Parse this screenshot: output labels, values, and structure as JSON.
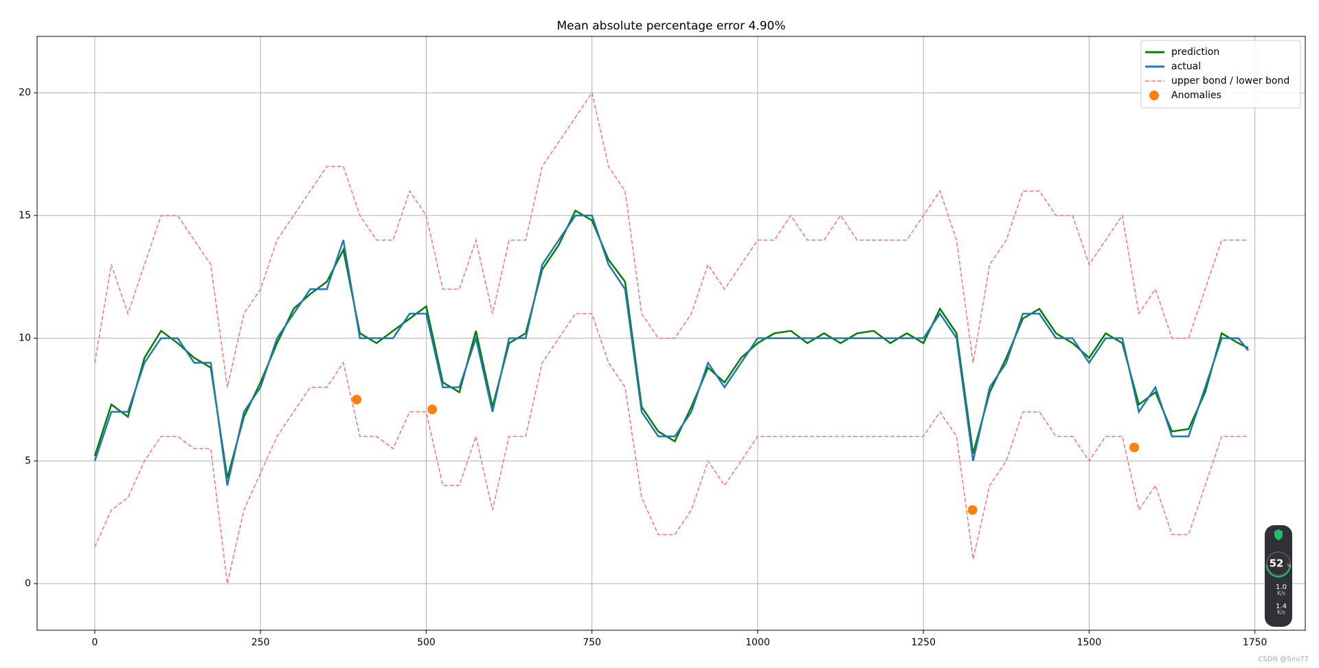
{
  "chart_data": {
    "type": "line",
    "title": "Mean absolute percentage error 4.90%",
    "x": [
      0,
      25,
      50,
      75,
      100,
      125,
      150,
      175,
      200,
      225,
      250,
      275,
      300,
      325,
      350,
      375,
      400,
      425,
      450,
      475,
      500,
      525,
      550,
      575,
      600,
      625,
      650,
      675,
      700,
      725,
      750,
      775,
      800,
      825,
      850,
      875,
      900,
      925,
      950,
      975,
      1000,
      1025,
      1050,
      1075,
      1100,
      1125,
      1150,
      1175,
      1200,
      1225,
      1250,
      1275,
      1300,
      1325,
      1350,
      1375,
      1400,
      1425,
      1450,
      1475,
      1500,
      1525,
      1550,
      1575,
      1600,
      1625,
      1650,
      1675,
      1700,
      1725,
      1740
    ],
    "series": [
      {
        "name": "prediction",
        "color": "#008000",
        "values": [
          5.2,
          7.3,
          6.8,
          9.2,
          10.3,
          9.8,
          9.2,
          8.8,
          4.3,
          6.8,
          8.2,
          9.8,
          11.2,
          11.8,
          12.3,
          13.6,
          10.2,
          9.8,
          10.3,
          10.8,
          11.3,
          8.2,
          7.8,
          10.3,
          7.2,
          9.8,
          10.2,
          12.8,
          13.8,
          15.2,
          14.8,
          13.2,
          12.3,
          7.2,
          6.2,
          5.8,
          7.2,
          8.8,
          8.2,
          9.2,
          9.8,
          10.2,
          10.3,
          9.8,
          10.2,
          9.8,
          10.2,
          10.3,
          9.8,
          10.2,
          9.8,
          11.2,
          10.2,
          5.3,
          7.8,
          9.2,
          10.8,
          11.2,
          10.2,
          9.8,
          9.2,
          10.2,
          9.8,
          7.3,
          7.8,
          6.2,
          6.3,
          7.8,
          10.2,
          9.8,
          9.6
        ]
      },
      {
        "name": "actual",
        "color": "#1f77b4",
        "values": [
          5,
          7,
          7,
          9,
          10,
          10,
          9,
          9,
          4,
          7,
          8,
          10,
          11,
          12,
          12,
          14,
          10,
          10,
          10,
          11,
          11,
          8,
          8,
          10,
          7,
          10,
          10,
          13,
          14,
          15,
          15,
          13,
          12,
          7,
          6,
          6,
          7,
          9,
          8,
          9,
          10,
          10,
          10,
          10,
          10,
          10,
          10,
          10,
          10,
          10,
          10,
          11,
          10,
          5,
          8,
          9,
          11,
          11,
          10,
          10,
          9,
          10,
          10,
          7,
          8,
          6,
          6,
          8,
          10,
          10,
          9.5
        ]
      },
      {
        "name": "upper bond / lower bond",
        "color": "#ff7070",
        "upper": [
          9,
          13,
          11,
          13,
          15,
          15,
          14,
          13,
          8,
          11,
          12,
          14,
          15,
          16,
          17,
          17,
          15,
          14,
          14,
          16,
          15,
          12,
          12,
          14,
          11,
          14,
          14,
          17,
          18,
          19,
          20,
          17,
          16,
          11,
          10,
          10,
          11,
          13,
          12,
          13,
          14,
          14,
          15,
          14,
          14,
          15,
          14,
          14,
          14,
          14,
          15,
          16,
          14,
          9,
          13,
          14,
          16,
          16,
          15,
          15,
          13,
          14,
          15,
          11,
          12,
          10,
          10,
          12,
          14,
          14,
          14
        ],
        "lower": [
          1.5,
          3,
          3.5,
          5,
          6,
          6,
          5.5,
          5.5,
          0,
          3,
          4.5,
          6,
          7,
          8,
          8,
          9,
          6,
          6,
          5.5,
          7,
          7,
          4,
          4,
          6,
          3,
          6,
          6,
          9,
          10,
          11,
          11,
          9,
          8,
          3.5,
          2,
          2,
          3,
          5,
          4,
          5,
          6,
          6,
          6,
          6,
          6,
          6,
          6,
          6,
          6,
          6,
          6,
          7,
          6,
          1,
          4,
          5,
          7,
          7,
          6,
          6,
          5,
          6,
          6,
          3,
          4,
          2,
          2,
          4,
          6,
          6,
          6
        ]
      }
    ],
    "anomalies": {
      "name": "Anomalies",
      "color": "#ff7f0e",
      "x": [
        395,
        509,
        1324,
        1568
      ],
      "values": [
        7.5,
        7.1,
        3.0,
        5.55
      ]
    },
    "xlim": [
      -87,
      1826
    ],
    "ylim": [
      -1.9,
      22.3
    ],
    "xticks": [
      0,
      250,
      500,
      750,
      1000,
      1250,
      1500,
      1750
    ],
    "yticks": [
      0,
      5,
      10,
      15,
      20
    ],
    "grid": true,
    "legend": "upper right"
  },
  "overlay": {
    "cpu": "52",
    "unit": "%",
    "up": "1.0",
    "down": "1.4",
    "rate_unit": "K/s"
  },
  "watermark": "CSDN @Snu77"
}
